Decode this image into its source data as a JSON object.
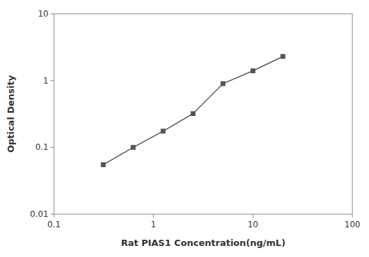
{
  "chart_data": {
    "type": "line",
    "x": [
      0.313,
      0.625,
      1.25,
      2.5,
      5,
      10,
      20
    ],
    "values": [
      0.055,
      0.1,
      0.175,
      0.32,
      0.9,
      1.4,
      2.3
    ],
    "xlabel": "Rat PIAS1 Concentration(ng/mL)",
    "ylabel": "Optical Density",
    "xlim": [
      0.1,
      100
    ],
    "ylim": [
      0.01,
      10
    ],
    "xticks": [
      0.1,
      1,
      10,
      100
    ],
    "yticks": [
      0.01,
      0.1,
      1,
      10
    ],
    "log": true,
    "grid": false,
    "color": "#555555",
    "marker": "square"
  }
}
